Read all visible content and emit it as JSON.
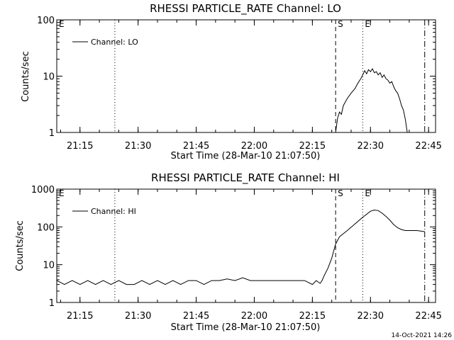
{
  "footer": {
    "timestamp": "14-Oct-2021 14:26"
  },
  "chart_data": [
    {
      "type": "line",
      "title": "RHESSI PARTICLE_RATE Channel: LO",
      "xlabel": "Start Time (28-Mar-10 21:07:50)",
      "ylabel": "Counts/sec",
      "yscale": "log",
      "ylim": [
        1,
        100
      ],
      "xlim": [
        21.15,
        22.78
      ],
      "xticks": [
        "21:15",
        "21:30",
        "21:45",
        "22:00",
        "22:15",
        "22:30",
        "22:45"
      ],
      "yticks": [
        "1",
        "10",
        "100"
      ],
      "legend": "top-left",
      "series": [
        {
          "name": "Channel: LO",
          "color": "#000000",
          "x": [
            "22:21",
            "22:21.5",
            "22:22",
            "22:22.5",
            "22:23",
            "22:24",
            "22:25",
            "22:26",
            "22:26.5",
            "22:27",
            "22:27.5",
            "22:28",
            "22:28.5",
            "22:29",
            "22:29.5",
            "22:30",
            "22:30.5",
            "22:31",
            "22:31.5",
            "22:32",
            "22:32.5",
            "22:33",
            "22:33.5",
            "22:34",
            "22:34.5",
            "22:35",
            "22:35.5",
            "22:36",
            "22:36.5",
            "22:37",
            "22:37.5",
            "22:38",
            "22:38.5",
            "22:39",
            "22:39.5"
          ],
          "values": [
            1.0,
            1.8,
            2.3,
            2.1,
            3.0,
            4.0,
            5.0,
            6.0,
            7.0,
            8.0,
            9.0,
            10.5,
            12.5,
            11.0,
            13.0,
            12.0,
            13.5,
            11.5,
            12.0,
            10.5,
            11.5,
            9.5,
            10.5,
            9.0,
            8.5,
            7.5,
            8.0,
            6.5,
            5.5,
            5.0,
            4.0,
            3.0,
            2.5,
            1.7,
            1.0
          ]
        }
      ],
      "markers": [
        {
          "label": "E",
          "x": "21:07:50",
          "style": "none"
        },
        {
          "label": "",
          "x": "21:24",
          "style": "dotted"
        },
        {
          "label": "S",
          "x": "22:21",
          "style": "dashed"
        },
        {
          "label": "E",
          "x": "22:28",
          "style": "dotted"
        },
        {
          "label": "",
          "x": "22:44",
          "style": "dash-dot"
        }
      ]
    },
    {
      "type": "line",
      "title": "RHESSI PARTICLE_RATE Channel: HI",
      "xlabel": "Start Time (28-Mar-10 21:07:50)",
      "ylabel": "Counts/sec",
      "yscale": "log",
      "ylim": [
        1,
        1000
      ],
      "xlim": [
        21.15,
        22.78
      ],
      "xticks": [
        "21:15",
        "21:30",
        "21:45",
        "22:00",
        "22:15",
        "22:30",
        "22:45"
      ],
      "yticks": [
        "1",
        "10",
        "100",
        "1000"
      ],
      "legend": "top-left",
      "series": [
        {
          "name": "Channel: HI",
          "color": "#000000",
          "x": [
            "21:09",
            "21:11",
            "21:13",
            "21:15",
            "21:17",
            "21:19",
            "21:21",
            "21:23",
            "21:25",
            "21:27",
            "21:29",
            "21:31",
            "21:33",
            "21:35",
            "21:37",
            "21:39",
            "21:41",
            "21:43",
            "21:45",
            "21:47",
            "21:49",
            "21:51",
            "21:53",
            "21:55",
            "21:57",
            "21:59",
            "22:01",
            "22:03",
            "22:05",
            "22:07",
            "22:09",
            "22:11",
            "22:13",
            "22:15",
            "22:16",
            "22:17",
            "22:17.5",
            "22:18",
            "22:19",
            "22:20",
            "22:21",
            "22:22",
            "22:24",
            "22:26",
            "22:28",
            "22:30",
            "22:31",
            "22:32",
            "22:33",
            "22:34",
            "22:35",
            "22:36",
            "22:37",
            "22:38",
            "22:39",
            "22:40",
            "22:42",
            "22:44"
          ],
          "values": [
            3.8,
            3.0,
            3.8,
            3.0,
            3.8,
            3.0,
            3.8,
            3.0,
            3.8,
            3.0,
            3.0,
            3.8,
            3.0,
            3.8,
            3.0,
            3.8,
            3.0,
            3.8,
            3.8,
            3.0,
            3.8,
            3.8,
            4.2,
            3.8,
            4.5,
            3.8,
            3.8,
            3.8,
            3.8,
            3.8,
            3.8,
            3.8,
            3.8,
            3.0,
            3.8,
            3.2,
            3.8,
            5.0,
            8.0,
            15.0,
            35.0,
            55.0,
            80.0,
            120.0,
            180.0,
            260.0,
            280.0,
            270.0,
            230.0,
            190.0,
            150.0,
            115.0,
            95.0,
            85.0,
            80.0,
            80.0,
            80.0,
            75.0
          ]
        }
      ],
      "markers": [
        {
          "label": "E",
          "x": "21:07:50",
          "style": "none"
        },
        {
          "label": "",
          "x": "21:24",
          "style": "dotted"
        },
        {
          "label": "S",
          "x": "22:21",
          "style": "dashed"
        },
        {
          "label": "E",
          "x": "22:28",
          "style": "dotted"
        },
        {
          "label": "",
          "x": "22:44",
          "style": "dash-dot"
        }
      ]
    }
  ]
}
